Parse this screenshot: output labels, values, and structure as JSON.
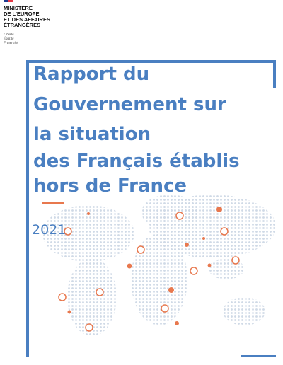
{
  "header": {
    "ministry": [
      "MINISTÈRE",
      "DE L'EUROPE",
      "ET DES AFFAIRES",
      "ÉTRANGÈRES"
    ],
    "motto": [
      "Liberté",
      "Égalité",
      "Fraternité"
    ]
  },
  "title": [
    "Rapport du",
    "Gouvernement sur",
    "la situation",
    "des Français établis",
    "hors de France"
  ],
  "year": "2021"
}
